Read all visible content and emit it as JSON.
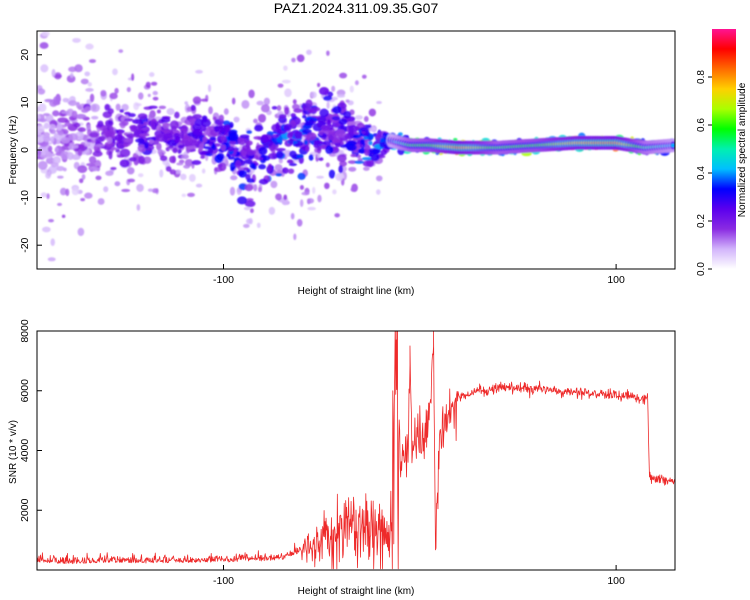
{
  "title": "PAZ1.2024.311.09.35.G07",
  "colors": {
    "snr_line": "#ee2a2a",
    "colormap": [
      "#ffffff",
      "#d2b4fb",
      "#8a2be2",
      "#5b00ee",
      "#0000ff",
      "#00bfff",
      "#00f0b0",
      "#00ff00",
      "#aaff00",
      "#ffd000",
      "#ff6a00",
      "#ff0000",
      "#ff1493"
    ]
  },
  "spectrogram": {
    "xlabel": "Height of straight line (km)",
    "ylabel": "Frequency (Hz)",
    "xlim": [
      -195,
      130
    ],
    "ylim": [
      -25,
      25
    ],
    "x_ticks": [
      "-100",
      "100"
    ],
    "x_tick_values": [
      -100,
      100
    ],
    "y_ticks": [
      "20",
      "10",
      "0",
      "-10",
      "-20"
    ],
    "y_tick_values": [
      20,
      10,
      0,
      -10,
      -20
    ],
    "colorbar": {
      "label": "Normalized spectral amplitude",
      "range": [
        0,
        1
      ],
      "ticks": [
        "0.0",
        "0.2",
        "0.4",
        "0.6",
        "0.8"
      ],
      "tick_values": [
        0,
        0.2,
        0.4,
        0.6,
        0.8
      ]
    }
  },
  "chart_data": [
    {
      "type": "heatmap",
      "title": "PAZ1.2024.311.09.35.G07",
      "xlabel": "Height of straight line (km)",
      "ylabel": "Frequency (Hz)",
      "xlim": [
        -195,
        130
      ],
      "ylim": [
        -25,
        25
      ],
      "colorbar_label": "Normalized spectral amplitude",
      "colorbar_range": [
        0,
        1
      ],
      "ridge": {
        "x": [
          -195,
          -180,
          -160,
          -140,
          -120,
          -100,
          -85,
          -70,
          -55,
          -40,
          -25,
          -15,
          -5,
          5,
          20,
          40,
          60,
          80,
          100,
          115,
          130
        ],
        "frequency": [
          2,
          3,
          2,
          3,
          3,
          2,
          -3,
          1,
          5,
          3,
          1,
          2,
          1,
          1,
          0.5,
          0.5,
          1,
          1.5,
          1.5,
          0.5,
          1
        ],
        "spread": [
          12,
          11,
          7,
          5,
          4,
          4,
          6,
          7,
          8,
          6,
          4,
          1.5,
          1,
          1,
          1,
          1,
          1,
          1,
          1,
          1,
          1
        ],
        "amplitude": [
          0.12,
          0.14,
          0.2,
          0.25,
          0.22,
          0.3,
          0.3,
          0.35,
          0.3,
          0.25,
          0.35,
          0.35,
          0.55,
          0.6,
          0.8,
          0.55,
          0.6,
          0.75,
          0.8,
          0.5,
          0.4
        ]
      }
    },
    {
      "type": "line",
      "xlabel": "Height of straight line (km)",
      "ylabel": "SNR (10 * v/v)",
      "xlim": [
        -195,
        130
      ],
      "ylim": [
        0,
        8000
      ],
      "x_ticks": [
        "-100",
        "100"
      ],
      "x_tick_values": [
        -100,
        100
      ],
      "y_ticks": [
        "8000",
        "6000",
        "4000",
        "2000"
      ],
      "y_tick_values": [
        8000,
        6000,
        4000,
        2000
      ],
      "grid": false,
      "x": [
        -195,
        -180,
        -160,
        -140,
        -120,
        -100,
        -90,
        -80,
        -70,
        -60,
        -50,
        -40,
        -30,
        -25,
        -20,
        -15,
        -12,
        -10,
        -8,
        -6,
        -5,
        -4,
        -2,
        0,
        2,
        5,
        7,
        8,
        10,
        15,
        20,
        25,
        30,
        35,
        40,
        45,
        50,
        60,
        70,
        80,
        90,
        100,
        110,
        114,
        116,
        117,
        120,
        125,
        130
      ],
      "y": [
        250,
        200,
        250,
        230,
        250,
        250,
        300,
        300,
        350,
        600,
        900,
        1200,
        1300,
        1500,
        1500,
        1000,
        7700,
        3700,
        3700,
        3800,
        7500,
        3900,
        4200,
        4400,
        4500,
        4700,
        8000,
        500,
        4500,
        5200,
        5800,
        5900,
        6050,
        6000,
        6100,
        6100,
        6100,
        6050,
        6000,
        5950,
        5900,
        5850,
        5800,
        5700,
        5900,
        3100,
        3050,
        3000,
        2900
      ]
    }
  ]
}
